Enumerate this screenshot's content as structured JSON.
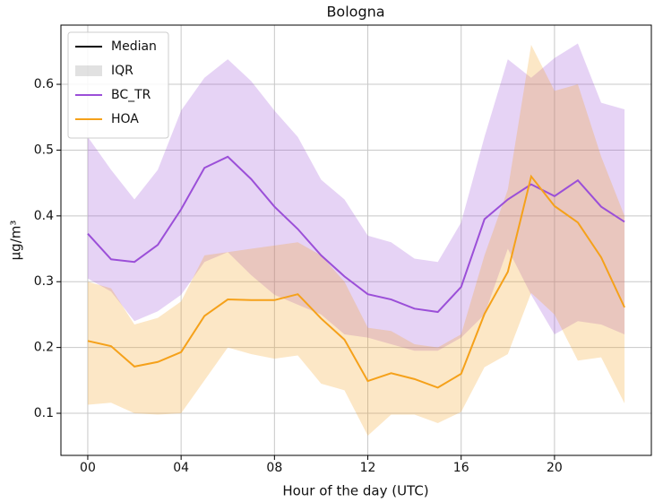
{
  "chart_data": {
    "type": "line_band",
    "title": "Bologna",
    "x_label": "Hour of the day (UTC)",
    "y_label": "µg/m³",
    "x": [
      0,
      1,
      2,
      3,
      4,
      5,
      6,
      7,
      8,
      9,
      10,
      11,
      12,
      13,
      14,
      15,
      16,
      17,
      18,
      19,
      20,
      21,
      22,
      23
    ],
    "xlim": [
      -1.15,
      24.15
    ],
    "xticks": [
      {
        "value": 0,
        "label": "00"
      },
      {
        "value": 4,
        "label": "04"
      },
      {
        "value": 8,
        "label": "08"
      },
      12,
      16,
      20
    ],
    "ylim": [
      0.036,
      0.69
    ],
    "yticks": [
      0.1,
      0.2,
      0.3,
      0.4,
      0.5,
      0.6
    ],
    "grid": true,
    "legend": {
      "corner": "upper left",
      "median": "Median",
      "iqr": "IQR"
    },
    "series": [
      {
        "name": "BC_TR",
        "color": "#9b4fd8",
        "values": [
          0.373,
          0.334,
          0.33,
          0.356,
          0.41,
          0.473,
          0.49,
          0.456,
          0.414,
          0.38,
          0.34,
          0.308,
          0.281,
          0.273,
          0.259,
          0.254,
          0.292,
          0.395,
          0.425,
          0.448,
          0.43,
          0.454,
          0.414,
          0.391
        ],
        "high": [
          0.52,
          0.47,
          0.425,
          0.47,
          0.56,
          0.61,
          0.638,
          0.605,
          0.56,
          0.52,
          0.455,
          0.425,
          0.37,
          0.36,
          0.335,
          0.33,
          0.39,
          0.52,
          0.638,
          0.61,
          0.64,
          0.662,
          0.572,
          0.562
        ],
        "low": [
          0.305,
          0.285,
          0.24,
          0.255,
          0.28,
          0.33,
          0.345,
          0.31,
          0.28,
          0.265,
          0.25,
          0.22,
          0.215,
          0.205,
          0.195,
          0.195,
          0.215,
          0.25,
          0.35,
          0.28,
          0.22,
          0.24,
          0.235,
          0.22
        ]
      },
      {
        "name": "HOA",
        "color": "#f5a11a",
        "values": [
          0.21,
          0.202,
          0.171,
          0.178,
          0.193,
          0.248,
          0.273,
          0.272,
          0.272,
          0.281,
          0.244,
          0.212,
          0.149,
          0.161,
          0.152,
          0.139,
          0.16,
          0.251,
          0.315,
          0.46,
          0.415,
          0.39,
          0.337,
          0.261
        ],
        "high": [
          0.3,
          0.29,
          0.235,
          0.245,
          0.27,
          0.34,
          0.345,
          0.35,
          0.355,
          0.36,
          0.34,
          0.3,
          0.23,
          0.225,
          0.205,
          0.2,
          0.22,
          0.34,
          0.44,
          0.66,
          0.59,
          0.6,
          0.49,
          0.4
        ],
        "low": [
          0.113,
          0.116,
          0.1,
          0.098,
          0.1,
          0.15,
          0.2,
          0.19,
          0.183,
          0.188,
          0.145,
          0.135,
          0.066,
          0.098,
          0.098,
          0.085,
          0.102,
          0.17,
          0.19,
          0.283,
          0.25,
          0.18,
          0.185,
          0.115
        ]
      }
    ]
  }
}
